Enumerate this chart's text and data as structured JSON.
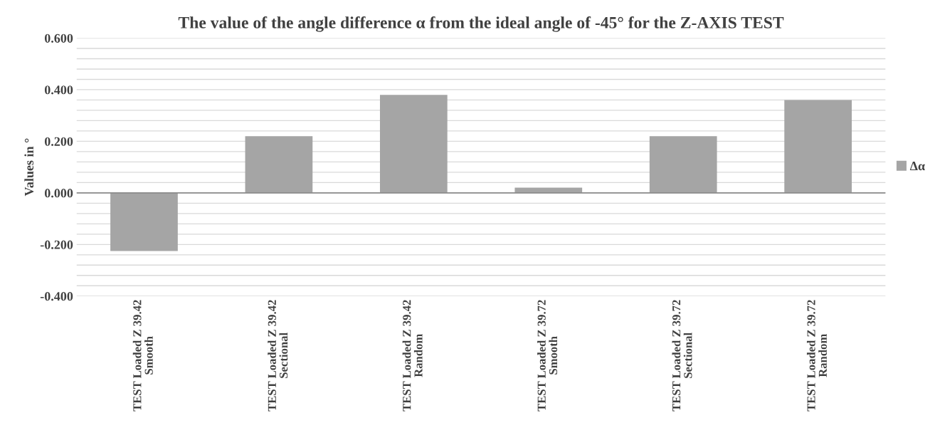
{
  "chart_data": {
    "type": "bar",
    "title": "The value of the angle difference α from the ideal angle of -45° for the Z-AXIS TEST",
    "ylabel": "Values in °",
    "categories": [
      "TEST Loaded Z 39.42\nSmooth",
      "TEST Loaded Z 39.42\nSectional",
      "TEST Loaded Z 39.42\nRandom",
      "TEST Loaded Z 39.72\nSmooth",
      "TEST Loaded Z 39.72\nSectional",
      "TEST Loaded Z 39.72\nRandom"
    ],
    "series": [
      {
        "name": "Δα",
        "color": "#a5a5a5",
        "values": [
          -0.225,
          0.22,
          0.38,
          0.02,
          0.22,
          0.36
        ]
      }
    ],
    "ylim": [
      -0.4,
      0.6
    ],
    "yticks": [
      {
        "value": -0.4,
        "label": "-0.400"
      },
      {
        "value": -0.36,
        "label": null
      },
      {
        "value": -0.32,
        "label": null
      },
      {
        "value": -0.28,
        "label": null
      },
      {
        "value": -0.24,
        "label": null
      },
      {
        "value": -0.2,
        "label": "-0.200"
      },
      {
        "value": -0.16,
        "label": null
      },
      {
        "value": -0.12,
        "label": null
      },
      {
        "value": -0.08,
        "label": null
      },
      {
        "value": -0.04,
        "label": null
      },
      {
        "value": 0,
        "label": "0.000"
      },
      {
        "value": 0.04,
        "label": null
      },
      {
        "value": 0.08,
        "label": null
      },
      {
        "value": 0.12,
        "label": null
      },
      {
        "value": 0.16,
        "label": null
      },
      {
        "value": 0.2,
        "label": "0.200"
      },
      {
        "value": 0.24,
        "label": null
      },
      {
        "value": 0.28,
        "label": null
      },
      {
        "value": 0.32,
        "label": null
      },
      {
        "value": 0.36,
        "label": null
      },
      {
        "value": 0.4,
        "label": "0.400"
      },
      {
        "value": 0.44,
        "label": null
      },
      {
        "value": 0.48,
        "label": null
      },
      {
        "value": 0.52,
        "label": null
      },
      {
        "value": 0.56,
        "label": null
      },
      {
        "value": 0.6,
        "label": "0.600"
      }
    ],
    "grid": "y",
    "legend": "right"
  }
}
